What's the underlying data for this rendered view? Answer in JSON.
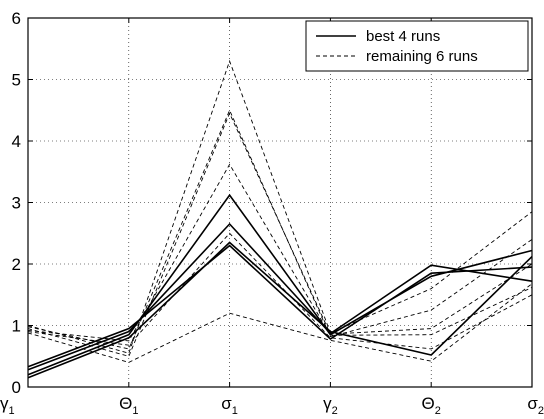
{
  "chart_data": {
    "type": "line",
    "categories": [
      "γ1",
      "Θ1",
      "σ1",
      "γ2",
      "Θ2",
      "σ2"
    ],
    "category_labels": [
      {
        "base": "γ",
        "sub": "1"
      },
      {
        "base": "Θ",
        "sub": "1"
      },
      {
        "base": "σ",
        "sub": "1"
      },
      {
        "base": "γ",
        "sub": "2"
      },
      {
        "base": "Θ",
        "sub": "2"
      },
      {
        "base": "σ",
        "sub": "2"
      }
    ],
    "ylim": [
      0,
      6
    ],
    "yticks": [
      "0",
      "1",
      "2",
      "3",
      "4",
      "5",
      "6"
    ],
    "grid": true,
    "legend": {
      "placement": "top-right",
      "entries": [
        {
          "label": "best 4 runs",
          "style": "solid"
        },
        {
          "label": "remaining 6 runs",
          "style": "dashed"
        }
      ]
    },
    "series": [
      {
        "group": "best",
        "style": "solid",
        "values": [
          0.2,
          0.85,
          3.12,
          0.85,
          1.8,
          2.22
        ]
      },
      {
        "group": "best",
        "style": "solid",
        "values": [
          0.28,
          0.9,
          2.65,
          0.87,
          1.98,
          1.72
        ]
      },
      {
        "group": "best",
        "style": "solid",
        "values": [
          0.33,
          0.95,
          2.3,
          0.78,
          1.85,
          1.95
        ]
      },
      {
        "group": "best",
        "style": "solid",
        "values": [
          0.15,
          0.8,
          2.35,
          0.9,
          0.52,
          2.12
        ]
      },
      {
        "group": "remaining",
        "style": "dashed",
        "values": [
          1.0,
          0.55,
          5.3,
          0.88,
          1.6,
          2.85
        ]
      },
      {
        "group": "remaining",
        "style": "dashed",
        "values": [
          0.98,
          0.62,
          4.5,
          0.82,
          1.25,
          2.4
        ]
      },
      {
        "group": "remaining",
        "style": "dashed",
        "values": [
          0.95,
          0.5,
          4.45,
          0.86,
          0.95,
          2.0
        ]
      },
      {
        "group": "remaining",
        "style": "dashed",
        "values": [
          0.92,
          0.75,
          3.62,
          0.84,
          0.85,
          1.62
        ]
      },
      {
        "group": "remaining",
        "style": "dashed",
        "values": [
          0.9,
          0.68,
          2.5,
          0.8,
          0.62,
          1.5
        ]
      },
      {
        "group": "remaining",
        "style": "dashed",
        "values": [
          0.88,
          0.4,
          1.2,
          0.76,
          0.42,
          1.68
        ]
      }
    ]
  }
}
